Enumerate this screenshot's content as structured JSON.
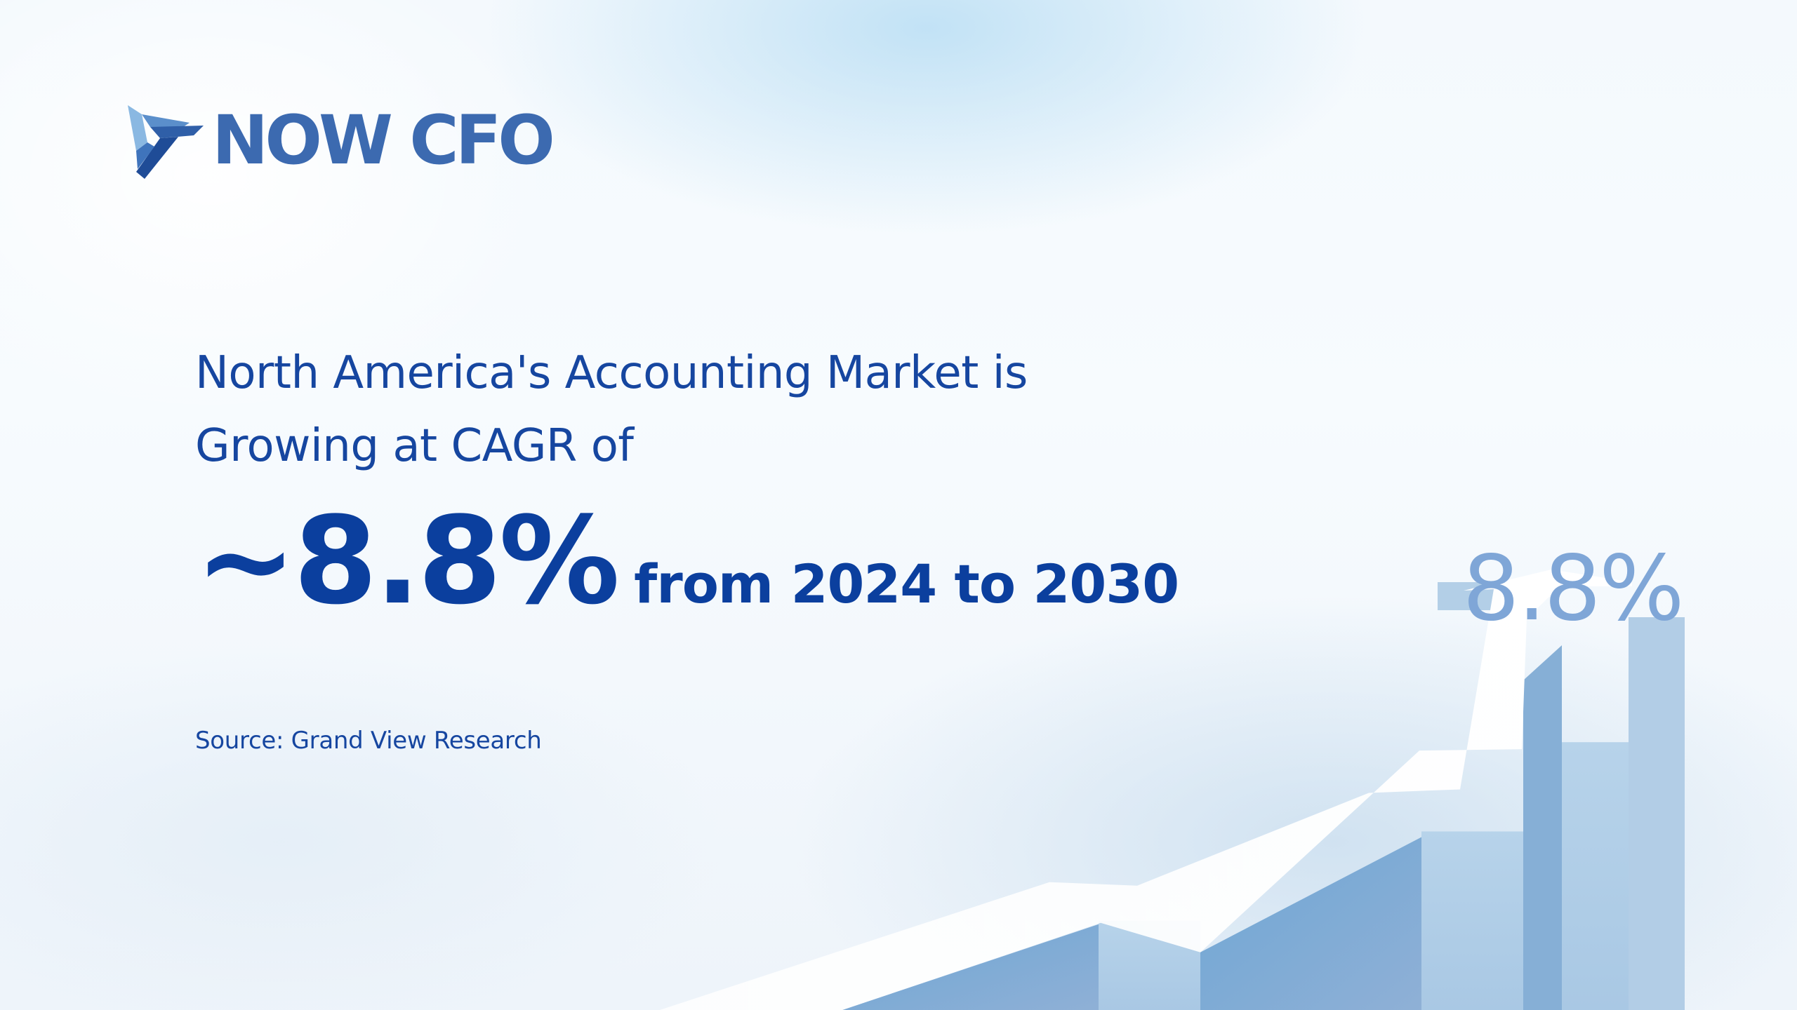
{
  "brand": {
    "name": "NOW CFO",
    "logo_icon": "now-cfo-logo-icon",
    "color": "#3c6ab0"
  },
  "headline": {
    "line1": "North America's Accounting Market is",
    "line2": "Growing at CAGR of"
  },
  "stat": {
    "value": "~8.8%",
    "period": "from 2024 to 2030"
  },
  "source": "Source: Grand View Research",
  "chart_data": {
    "type": "bar",
    "title": "",
    "categories": [
      "",
      "",
      "",
      ""
    ],
    "values": [
      2,
      4,
      6,
      8.8
    ],
    "value_labels": [
      "",
      "",
      "",
      "8.8%"
    ],
    "colors": {
      "bar_front": "#b3cfe7",
      "bar_side": "#7eaed8",
      "arrow": "#ffffff",
      "label": "#7fa6d7"
    }
  }
}
